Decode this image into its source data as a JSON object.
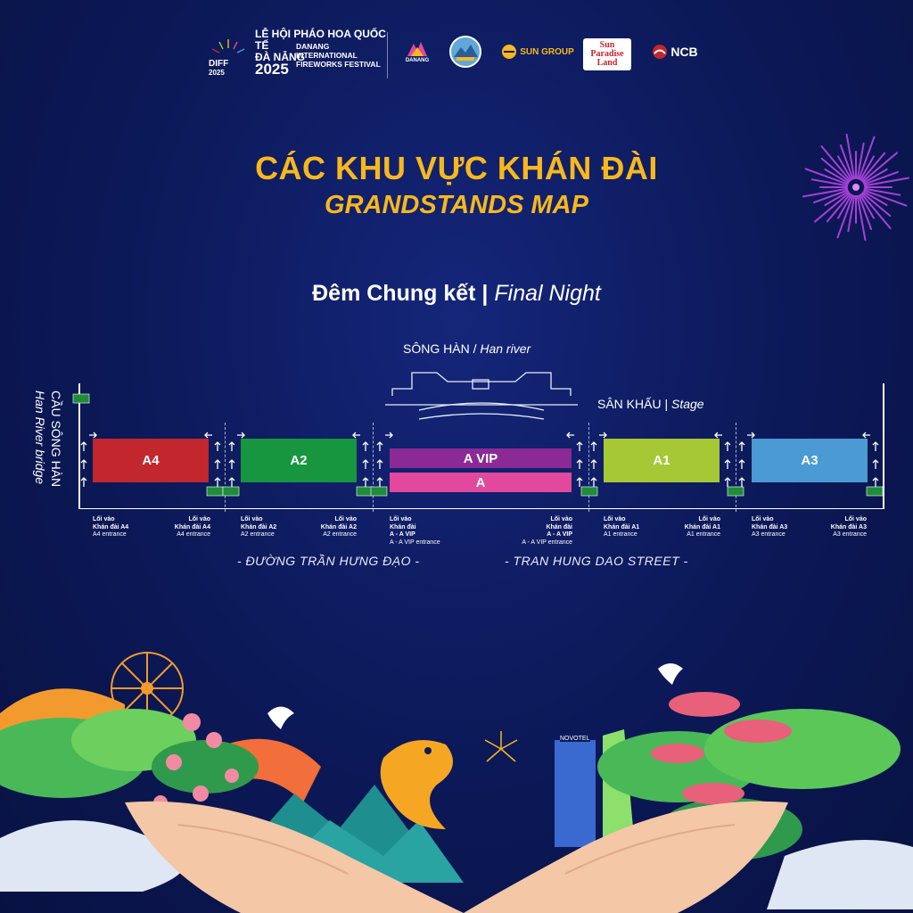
{
  "header": {
    "diff_logo_text": "DIFF 2025",
    "festival_vn_line1": "LỄ HỘI PHÁO HOA QUỐC TẾ",
    "festival_vn_line2": "ĐÀ NẴNG",
    "festival_year": "2025",
    "festival_en": [
      "DANANG",
      "INTERNATIONAL",
      "FIREWORKS FESTIVAL"
    ],
    "sponsors": [
      {
        "name": "DANANG",
        "icon": "danang-logo-icon"
      },
      {
        "name": "",
        "icon": "city-emblem-icon"
      },
      {
        "name": "SUN GROUP",
        "icon": "sun-group-logo-icon"
      },
      {
        "name": "Sun Paradise Land",
        "icon": "sun-paradise-land-logo-icon"
      },
      {
        "name": "NCB",
        "icon": "ncb-logo-icon"
      }
    ]
  },
  "title": {
    "vn": "CÁC KHU VỰC KHÁN ĐÀI",
    "en": "GRANDSTANDS MAP"
  },
  "night": {
    "vn": "Đêm Chung kết |",
    "en": "Final Night"
  },
  "map": {
    "river_vn": "SÔNG HÀN /",
    "river_en": "Han river",
    "stage_vn": "SÂN KHẤU |",
    "stage_en": "Stage",
    "bridge_vn": "CẦU SÔNG HÀN",
    "bridge_en": "Han River bridge",
    "stands": [
      {
        "label": "A4",
        "color": "#c1272d"
      },
      {
        "label": "A2",
        "color": "#17963f"
      },
      {
        "label": "A VIP",
        "color": "#8b2a95"
      },
      {
        "label": "A",
        "color": "#e2499c"
      },
      {
        "label": "A1",
        "color": "#a6c835"
      },
      {
        "label": "A3",
        "color": "#4b9ad3"
      }
    ],
    "entrances": [
      {
        "vn": [
          "Lối vào",
          "Khán đài A4"
        ],
        "en": "A4 entrance"
      },
      {
        "vn": [
          "Lối vào",
          "Khán đài A4"
        ],
        "en": "A4 entrance"
      },
      {
        "vn": [
          "Lối vào",
          "Khán đài A2"
        ],
        "en": "A2 entrance"
      },
      {
        "vn": [
          "Lối vào",
          "Khán đài A2"
        ],
        "en": "A2 entrance"
      },
      {
        "vn": [
          "Lối vào",
          "Khán đài",
          "A - A VIP"
        ],
        "en": "A - A VIP entrance"
      },
      {
        "vn": [
          "Lối vào",
          "Khán đài",
          "A - A VIP"
        ],
        "en": "A - A VIP entrance"
      },
      {
        "vn": [
          "Lối vào",
          "Khán đài A1"
        ],
        "en": "A1 entrance"
      },
      {
        "vn": [
          "Lối vào",
          "Khán đài A1"
        ],
        "en": "A1 entrance"
      },
      {
        "vn": [
          "Lối vào",
          "Khán đài A3"
        ],
        "en": "A3 entrance"
      },
      {
        "vn": [
          "Lối vào",
          "Khán đài A3"
        ],
        "en": "A3 entrance"
      }
    ],
    "street_vn": "- ĐƯỜNG TRẦN HƯNG ĐẠO -",
    "street_en": "- TRAN HUNG DAO STREET -"
  },
  "illustration": {
    "hotel_sign": "NOVOTEL"
  },
  "colors": {
    "background": "#0d1a5c",
    "title": "#f8b81c",
    "exit_sign": "#1e8c3a"
  }
}
